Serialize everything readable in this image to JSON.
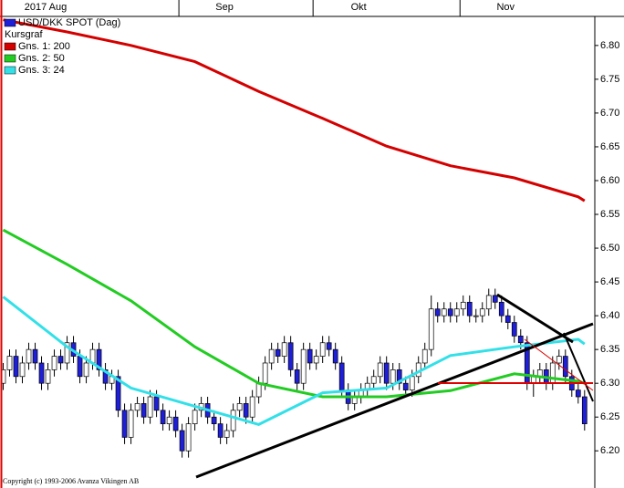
{
  "chart_data": {
    "type": "candlestick",
    "title": "USD/DKK SPOT (Dag)",
    "copyright": "Copyright (c) 1993-2006 Avanza Vikingen AB",
    "xlim": [
      -0.5,
      92.6
    ],
    "xticks": [
      {
        "value": 0,
        "label": "2017 Aug"
      },
      {
        "value": 28,
        "label": "Sep"
      },
      {
        "value": 49,
        "label": "Okt"
      },
      {
        "value": 72,
        "label": "Nov"
      }
    ],
    "ylim": [
      6.145,
      6.843
    ],
    "yticks": [
      {
        "value": 6.2,
        "label": "6.20"
      },
      6.25,
      {
        "value": 6.3,
        "label": "6.30"
      },
      6.35,
      {
        "value": 6.4,
        "label": "6.40"
      },
      6.45,
      {
        "value": 6.5,
        "label": "6.50"
      },
      6.55,
      {
        "value": 6.6,
        "label": "6.60"
      },
      6.65,
      {
        "value": 6.7,
        "label": "6.70"
      },
      6.75,
      {
        "value": 6.8,
        "label": "6.80"
      }
    ],
    "candles": {
      "name": "Kursgraf",
      "up_color": "#ffffff",
      "down_color": "#1f1fd8",
      "open": [
        6.3,
        6.32,
        6.34,
        6.31,
        6.33,
        6.35,
        6.33,
        6.3,
        6.32,
        6.34,
        6.33,
        6.36,
        6.34,
        6.31,
        6.33,
        6.35,
        6.32,
        6.3,
        6.31,
        6.26,
        6.22,
        6.26,
        6.27,
        6.25,
        6.28,
        6.26,
        6.24,
        6.25,
        6.23,
        6.2,
        6.24,
        6.26,
        6.27,
        6.25,
        6.24,
        6.22,
        6.23,
        6.26,
        6.27,
        6.25,
        6.28,
        6.3,
        6.33,
        6.35,
        6.34,
        6.36,
        6.32,
        6.3,
        6.35,
        6.33,
        6.34,
        6.36,
        6.35,
        6.33,
        6.29,
        6.27,
        6.28,
        6.29,
        6.3,
        6.31,
        6.33,
        6.3,
        6.32,
        6.3,
        6.29,
        6.31,
        6.33,
        6.35,
        6.41,
        6.4,
        6.41,
        6.4,
        6.41,
        6.42,
        6.4,
        6.4,
        6.41,
        6.43,
        6.42,
        6.4,
        6.39,
        6.37,
        6.36,
        6.3,
        6.31,
        6.32,
        6.3,
        6.33,
        6.34,
        6.31,
        6.29,
        6.28
      ],
      "high": [
        6.33,
        6.35,
        6.35,
        6.34,
        6.36,
        6.36,
        6.34,
        6.33,
        6.35,
        6.35,
        6.37,
        6.37,
        6.35,
        6.34,
        6.36,
        6.36,
        6.33,
        6.32,
        6.32,
        6.27,
        6.27,
        6.28,
        6.28,
        6.29,
        6.29,
        6.27,
        6.26,
        6.26,
        6.24,
        6.25,
        6.27,
        6.28,
        6.28,
        6.26,
        6.25,
        6.24,
        6.27,
        6.28,
        6.28,
        6.29,
        6.31,
        6.34,
        6.36,
        6.36,
        6.37,
        6.37,
        6.33,
        6.36,
        6.36,
        6.35,
        6.37,
        6.37,
        6.36,
        6.34,
        6.3,
        6.29,
        6.3,
        6.31,
        6.32,
        6.34,
        6.34,
        6.33,
        6.33,
        6.31,
        6.32,
        6.34,
        6.36,
        6.43,
        6.42,
        6.42,
        6.42,
        6.42,
        6.43,
        6.43,
        6.41,
        6.42,
        6.44,
        6.44,
        6.43,
        6.41,
        6.4,
        6.38,
        6.37,
        6.32,
        6.33,
        6.33,
        6.34,
        6.35,
        6.35,
        6.32,
        6.3,
        6.29
      ],
      "low": [
        6.29,
        6.31,
        6.3,
        6.3,
        6.32,
        6.32,
        6.29,
        6.29,
        6.31,
        6.32,
        6.32,
        6.33,
        6.3,
        6.3,
        6.32,
        6.31,
        6.29,
        6.29,
        6.25,
        6.21,
        6.21,
        6.25,
        6.24,
        6.24,
        6.25,
        6.23,
        6.23,
        6.22,
        6.19,
        6.19,
        6.23,
        6.25,
        6.24,
        6.23,
        6.21,
        6.21,
        6.22,
        6.25,
        6.24,
        6.24,
        6.27,
        6.29,
        6.32,
        6.33,
        6.33,
        6.31,
        6.29,
        6.29,
        6.32,
        6.32,
        6.33,
        6.34,
        6.32,
        6.28,
        6.26,
        6.26,
        6.27,
        6.28,
        6.29,
        6.3,
        6.29,
        6.29,
        6.29,
        6.28,
        6.28,
        6.3,
        6.32,
        6.34,
        6.39,
        6.39,
        6.39,
        6.39,
        6.4,
        6.39,
        6.39,
        6.39,
        6.4,
        6.41,
        6.39,
        6.38,
        6.36,
        6.35,
        6.29,
        6.28,
        6.3,
        6.29,
        6.29,
        6.32,
        6.3,
        6.28,
        6.27,
        6.23
      ],
      "close": [
        6.32,
        6.34,
        6.31,
        6.33,
        6.35,
        6.33,
        6.3,
        6.32,
        6.34,
        6.33,
        6.36,
        6.34,
        6.31,
        6.33,
        6.35,
        6.32,
        6.3,
        6.31,
        6.26,
        6.22,
        6.26,
        6.27,
        6.25,
        6.28,
        6.26,
        6.24,
        6.25,
        6.23,
        6.2,
        6.24,
        6.26,
        6.27,
        6.25,
        6.24,
        6.22,
        6.23,
        6.26,
        6.27,
        6.25,
        6.28,
        6.3,
        6.33,
        6.35,
        6.34,
        6.36,
        6.32,
        6.3,
        6.35,
        6.33,
        6.34,
        6.36,
        6.35,
        6.33,
        6.29,
        6.27,
        6.28,
        6.29,
        6.3,
        6.31,
        6.33,
        6.3,
        6.32,
        6.3,
        6.29,
        6.31,
        6.33,
        6.35,
        6.41,
        6.4,
        6.41,
        6.4,
        6.41,
        6.42,
        6.4,
        6.4,
        6.41,
        6.43,
        6.42,
        6.4,
        6.39,
        6.37,
        6.36,
        6.3,
        6.31,
        6.32,
        6.3,
        6.33,
        6.34,
        6.31,
        6.29,
        6.28,
        6.24
      ]
    },
    "series": [
      {
        "name": "Gns. 1: 200",
        "color": "#d40000",
        "x": [
          0,
          10,
          20,
          30,
          40,
          50,
          60,
          70,
          80,
          90,
          91
        ],
        "values": [
          6.838,
          6.82,
          6.8,
          6.776,
          6.732,
          6.692,
          6.651,
          6.622,
          6.604,
          6.576,
          6.57
        ]
      },
      {
        "name": "Gns. 2: 50",
        "color": "#22cc22",
        "x": [
          0,
          10,
          20,
          30,
          40,
          50,
          60,
          70,
          80,
          90,
          91
        ],
        "values": [
          6.527,
          6.476,
          6.422,
          6.354,
          6.3,
          6.28,
          6.28,
          6.289,
          6.314,
          6.303,
          6.3
        ]
      },
      {
        "name": "Gns. 3: 24",
        "color": "#33e0e8",
        "x": [
          0,
          10,
          20,
          30,
          40,
          50,
          60,
          70,
          80,
          90,
          91
        ],
        "values": [
          6.428,
          6.354,
          6.293,
          6.266,
          6.239,
          6.286,
          6.293,
          6.341,
          6.354,
          6.365,
          6.358
        ]
      }
    ]
  }
}
